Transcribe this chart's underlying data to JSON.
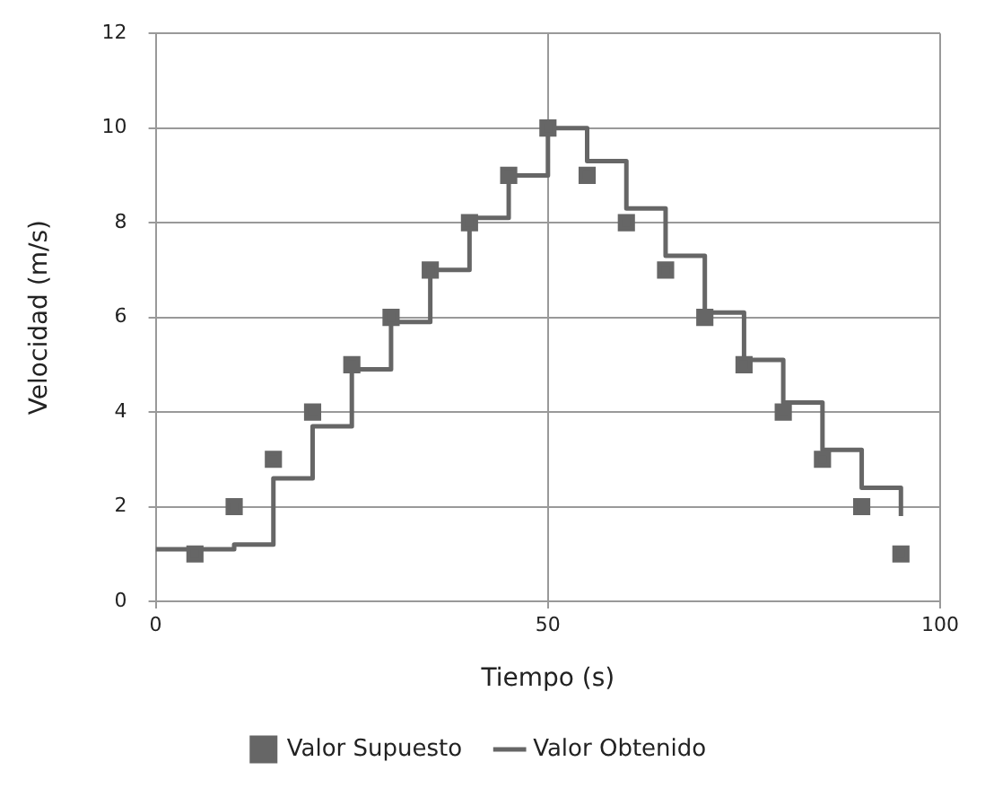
{
  "chart_data": {
    "type": "scatter",
    "xlabel": "Tiempo (s)",
    "ylabel": "Velocidad (m/s)",
    "xlim": [
      0,
      100
    ],
    "xticks": [
      0,
      50,
      100
    ],
    "ylim": [
      0,
      12
    ],
    "yticks": [
      0,
      2,
      4,
      6,
      8,
      10,
      12
    ],
    "grid": true,
    "legend": "bottom",
    "series": [
      {
        "name": "Valor Supuesto",
        "marker": "square",
        "color": "#666666",
        "x": [
          5,
          10,
          15,
          20,
          25,
          30,
          35,
          40,
          45,
          50,
          55,
          60,
          65,
          70,
          75,
          80,
          85,
          90,
          95
        ],
        "values": [
          1,
          2,
          3,
          4,
          5,
          6,
          7,
          8,
          9,
          10,
          9,
          8,
          7,
          6,
          5,
          4,
          3,
          2,
          1
        ]
      },
      {
        "name": "Valor Obtenido",
        "type": "step",
        "marker": "none",
        "color": "#666666",
        "x": [
          0,
          10,
          15,
          20,
          25,
          30,
          35,
          40,
          45,
          50,
          55,
          60,
          65,
          70,
          75,
          80,
          85,
          90,
          95
        ],
        "values": [
          1.1,
          1.2,
          2.6,
          3.7,
          4.9,
          5.9,
          7,
          8.1,
          9,
          10,
          9.3,
          8.3,
          7.3,
          6.1,
          5.1,
          4.2,
          3.2,
          2.4,
          1.8
        ]
      }
    ]
  }
}
